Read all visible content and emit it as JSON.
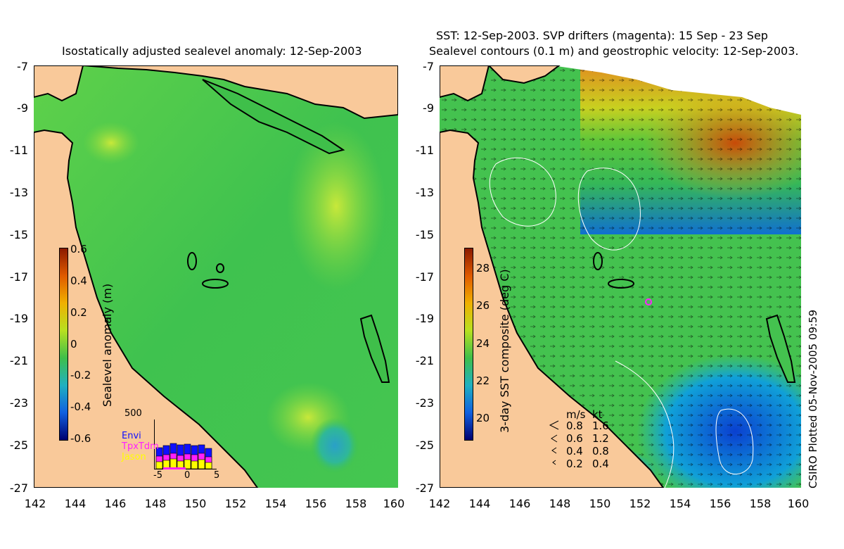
{
  "left_panel": {
    "title": "Isostatically adjusted sealevel anomaly: 12-Sep-2003",
    "y_ticks": [
      "-7",
      "-9",
      "-11",
      "-13",
      "-15",
      "-17",
      "-19",
      "-21",
      "-23",
      "-25",
      "-27"
    ],
    "x_ticks": [
      "142",
      "144",
      "146",
      "148",
      "150",
      "152",
      "154",
      "156",
      "158",
      "160"
    ],
    "colorbar": {
      "label": "Sealevel anomaly (m)",
      "ticks": [
        "0.6",
        "0.4",
        "0.2",
        "0",
        "-0.2",
        "-0.4",
        "-0.6"
      ]
    },
    "inset": {
      "ymax": "500",
      "legend": [
        "Envi",
        "TpxTdm",
        "Jason"
      ],
      "legend_colors": [
        "#1010ff",
        "#ff20ff",
        "#ffff00"
      ],
      "x_ticks": [
        "-5",
        "0",
        "5"
      ]
    }
  },
  "right_panel": {
    "title_line1": "SST: 12-Sep-2003. SVP drifters (magenta): 15 Sep - 23 Sep",
    "title_line2": "Sealevel contours (0.1 m) and geostrophic velocity: 12-Sep-2003.",
    "y_ticks": [
      "-7",
      "-9",
      "-11",
      "-13",
      "-15",
      "-17",
      "-19",
      "-21",
      "-23",
      "-25",
      "-27"
    ],
    "x_ticks": [
      "142",
      "144",
      "146",
      "148",
      "150",
      "152",
      "154",
      "156",
      "158",
      "160"
    ],
    "colorbar": {
      "label": "3-day SST composite (deg C)",
      "ticks": [
        "28",
        "26",
        "24",
        "22",
        "20"
      ]
    },
    "velocity_legend": {
      "header_ms": "m/s",
      "header_kt": "kt",
      "rows": [
        {
          "ms": "0.8",
          "kt": "1.6"
        },
        {
          "ms": "0.6",
          "kt": "1.2"
        },
        {
          "ms": "0.4",
          "kt": "0.8"
        },
        {
          "ms": "0.2",
          "kt": "0.4"
        }
      ]
    }
  },
  "credit": "CSIRO Plotted 05-Nov-2005 09:59",
  "colors": {
    "land": "#f9c99a",
    "ocean_green": "#3fbf4a",
    "ocean_yellowgreen": "#9ee03a"
  }
}
